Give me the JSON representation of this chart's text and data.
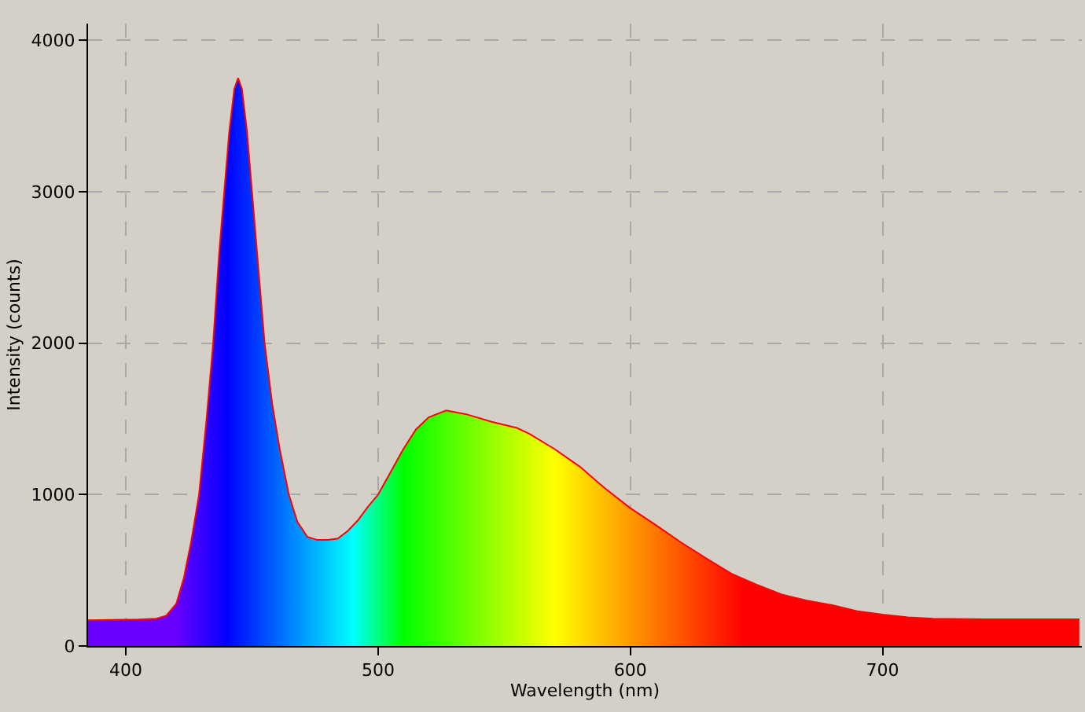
{
  "chart_data": {
    "type": "area",
    "xlabel": "Wavelength (nm)",
    "ylabel": "Intensity (counts)",
    "xlim": [
      385,
      779
    ],
    "ylim": [
      0,
      4110
    ],
    "xticks": [
      400,
      500,
      600,
      700
    ],
    "yticks": [
      0,
      1000,
      2000,
      3000,
      4000
    ],
    "grid": true,
    "series": [
      {
        "color": "#ff0000",
        "x": [
          385,
          395,
          405,
          412,
          416,
          420,
          423,
          426,
          429,
          432,
          434.6,
          437,
          439,
          441,
          443,
          444.5,
          446,
          448,
          450,
          452,
          455,
          458,
          461,
          464.6,
          468,
          472,
          476,
          480,
          484,
          488,
          492,
          496,
          500,
          505,
          510,
          515,
          520,
          527,
          535,
          545,
          555,
          560,
          570,
          580,
          590,
          600,
          610,
          620,
          630,
          640,
          650,
          660,
          670,
          680,
          690,
          700,
          710,
          720,
          740,
          760,
          778
        ],
        "values": [
          170,
          172,
          175,
          180,
          200,
          280,
          450,
          700,
          1000,
          1500,
          2000,
          2600,
          3000,
          3400,
          3680,
          3750,
          3680,
          3400,
          3000,
          2600,
          2000,
          1600,
          1300,
          1000,
          820,
          720,
          700,
          700,
          710,
          760,
          830,
          920,
          1000,
          1150,
          1300,
          1430,
          1510,
          1555,
          1530,
          1480,
          1440,
          1400,
          1300,
          1184,
          1040,
          910,
          800,
          685,
          580,
          478,
          405,
          340,
          300,
          270,
          230,
          208,
          190,
          180,
          177,
          177,
          177
        ]
      }
    ]
  }
}
